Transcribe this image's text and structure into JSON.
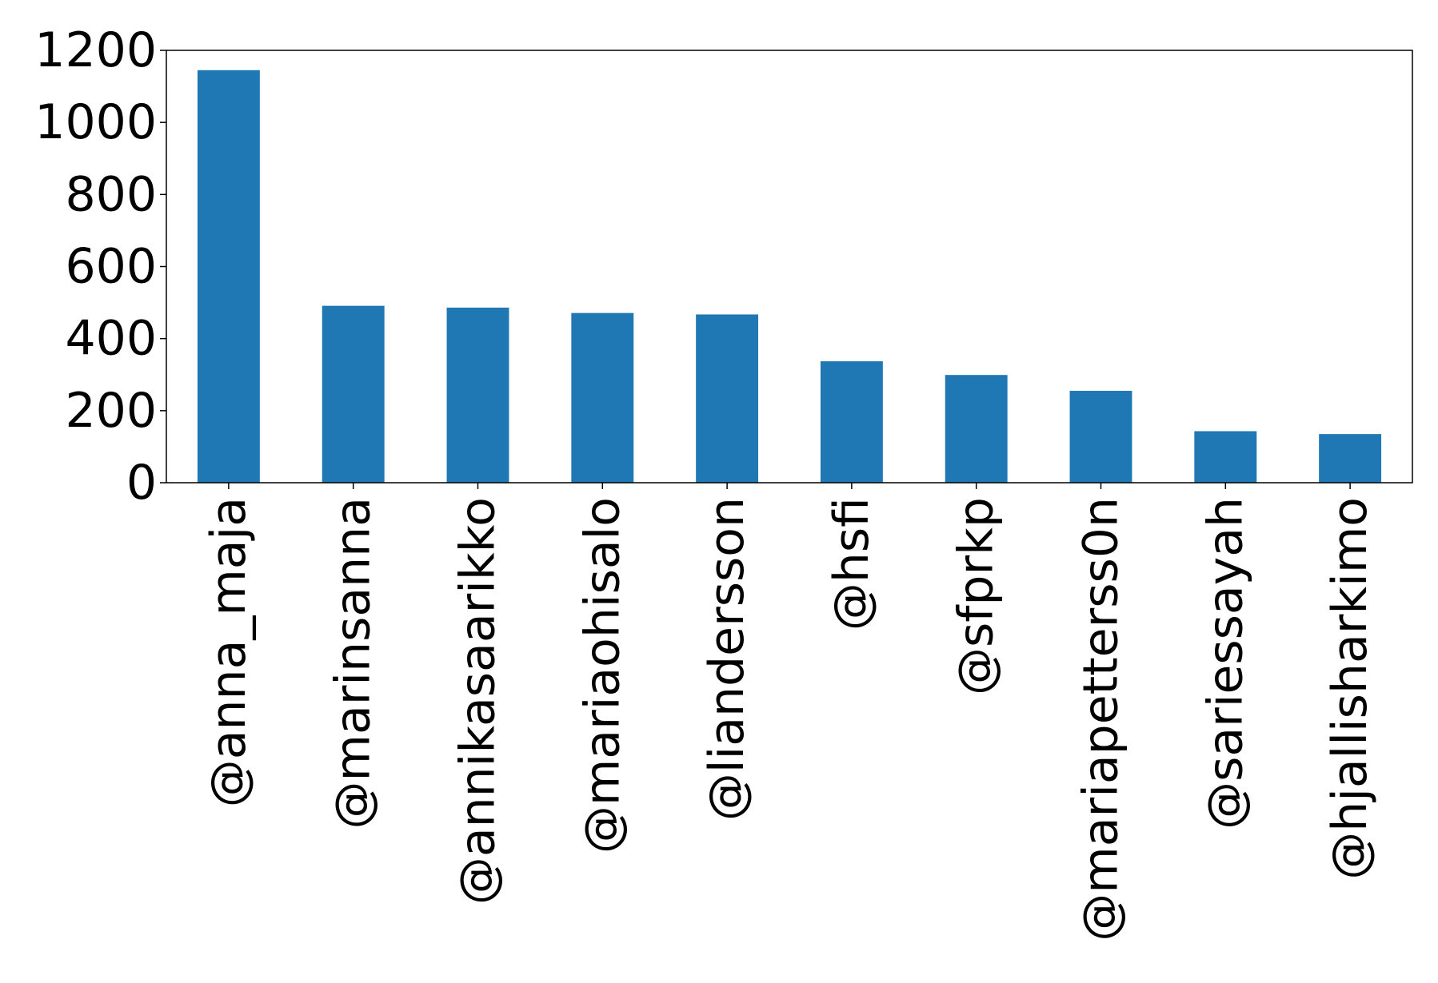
{
  "chart_data": {
    "type": "bar",
    "categories": [
      "@anna_maja",
      "@marinsanna",
      "@annikasaarikko",
      "@mariaohisalo",
      "@liandersson",
      "@hsfi",
      "@sfprkp",
      "@mariapetterss0n",
      "@sariessayah",
      "@hjallisharkimo"
    ],
    "values": [
      1145,
      491,
      486,
      471,
      467,
      337,
      299,
      255,
      143,
      135
    ],
    "y_ticks": [
      "0",
      "200",
      "400",
      "600",
      "800",
      "1000",
      "1200"
    ],
    "ylim": [
      0,
      1200
    ],
    "title": "",
    "xlabel": "",
    "ylabel": "",
    "grid": false,
    "bar_color": "#1f77b4"
  }
}
